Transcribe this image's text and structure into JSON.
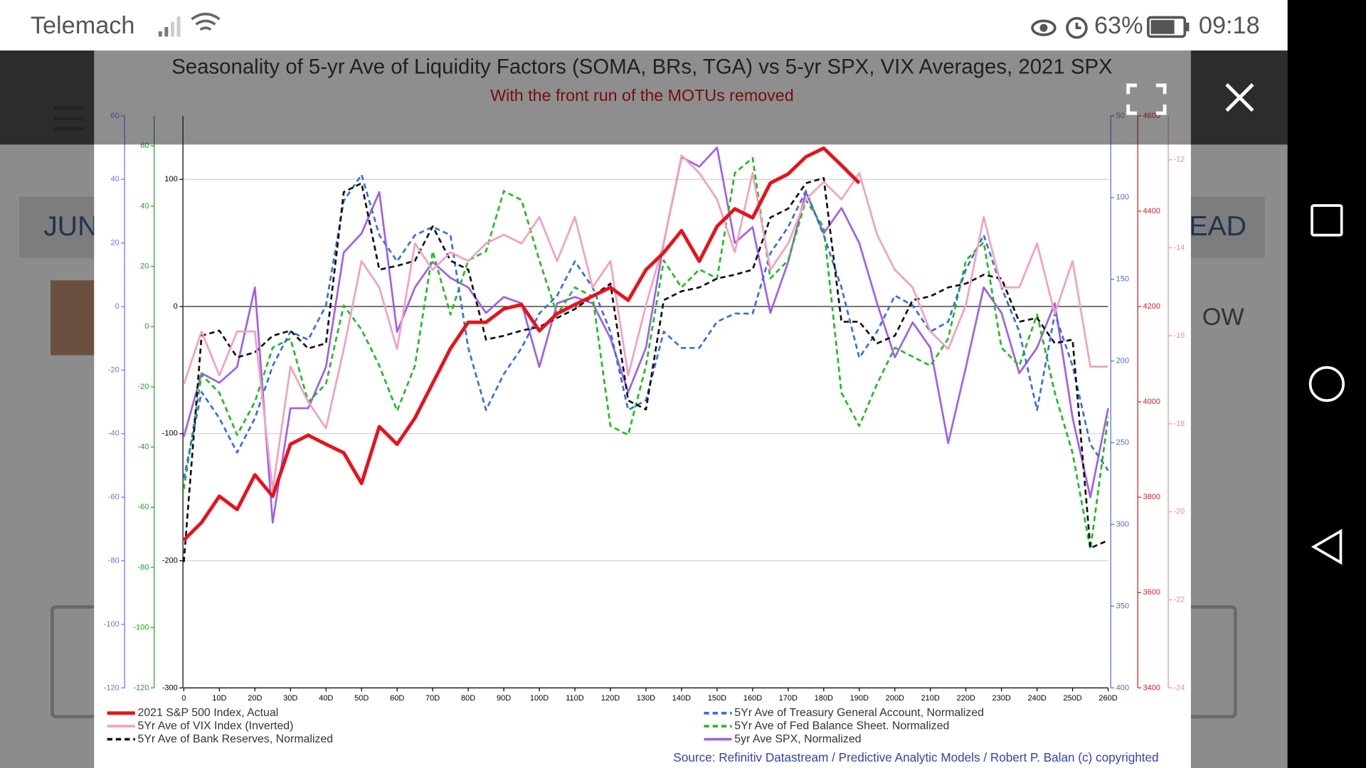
{
  "status": {
    "carrier": "Telemach",
    "battery": "63%",
    "time": "09:18"
  },
  "background": {
    "texts": [
      "JUN",
      "EAD",
      "OW"
    ]
  },
  "chart_data": {
    "type": "line",
    "title": "Seasonality of 5-yr Ave of Liquidity Factors (SOMA, BRs, TGA) vs 5-yr SPX, VIX Averages, 2021 SPX",
    "subtitle": "With the front run of the MOTUs removed",
    "source": "Source: Refinitiv Datastream / Predictive Analytic Models / Robert P. Balan (c) copyrighted",
    "x": [
      0,
      5,
      10,
      15,
      20,
      25,
      30,
      35,
      40,
      45,
      50,
      55,
      60,
      65,
      70,
      75,
      80,
      85,
      90,
      95,
      100,
      105,
      110,
      115,
      120,
      125,
      130,
      135,
      140,
      145,
      150,
      155,
      160,
      165,
      170,
      175,
      180,
      185,
      190,
      195,
      200,
      205,
      210,
      215,
      220,
      225,
      230,
      235,
      240,
      245,
      250,
      255,
      260
    ],
    "xlim": [
      0,
      260
    ],
    "xticks": [
      0,
      {
        "value": 10,
        "label": "10D"
      },
      {
        "value": 20,
        "label": "20D"
      },
      {
        "value": 30,
        "label": "30D"
      },
      {
        "value": 40,
        "label": "40D"
      },
      {
        "value": 50,
        "label": "50D"
      },
      {
        "value": 60,
        "label": "60D"
      },
      {
        "value": 70,
        "label": "70D"
      },
      {
        "value": 80,
        "label": "80D"
      },
      {
        "value": 90,
        "label": "90D"
      },
      {
        "value": 100,
        "label": "100D"
      },
      {
        "value": 110,
        "label": "110D"
      },
      {
        "value": 120,
        "label": "120D"
      },
      {
        "value": 130,
        "label": "130D"
      },
      {
        "value": 140,
        "label": "140D"
      },
      {
        "value": 150,
        "label": "150D"
      },
      {
        "value": 160,
        "label": "160D"
      },
      {
        "value": 170,
        "label": "170D"
      },
      {
        "value": 180,
        "label": "180D"
      },
      {
        "value": 190,
        "label": "190D"
      },
      {
        "value": 200,
        "label": "200D"
      },
      {
        "value": 210,
        "label": "210D"
      },
      {
        "value": 220,
        "label": "220D"
      },
      {
        "value": 230,
        "label": "230D"
      },
      {
        "value": 240,
        "label": "240D"
      },
      {
        "value": 250,
        "label": "250D"
      },
      {
        "value": 260,
        "label": "260D"
      }
    ],
    "grid": true,
    "grid_axis": 2,
    "axes": [
      {
        "ylim": [
          -120,
          60
        ],
        "yticks": [
          60,
          40,
          20,
          0,
          -20,
          -40,
          -60,
          -80,
          -100,
          -120
        ],
        "color": "#7b68ee"
      },
      {
        "ylim": [
          -120,
          70
        ],
        "yticks": [
          60,
          40,
          20,
          0,
          -20,
          -40,
          -60,
          -80,
          -100,
          -120
        ],
        "color": "#22a022"
      },
      {
        "ylim": [
          -300,
          150
        ],
        "yticks": [
          100,
          0,
          -100,
          -200,
          -300
        ],
        "color": "#000000"
      },
      {
        "ylim": [
          400,
          50
        ],
        "yticks": [
          50,
          100,
          150,
          200,
          250,
          300,
          350,
          400
        ],
        "color": "#4a6fc8"
      },
      {
        "ylim": [
          3400,
          4600
        ],
        "yticks": [
          4600,
          4400,
          4200,
          4000,
          3800,
          3600,
          3400
        ],
        "color": "#cc2222"
      },
      {
        "ylim": [
          -24,
          -11
        ],
        "yticks": [
          -12,
          -14,
          -16,
          -18,
          -20,
          -22,
          -24
        ],
        "color": "#e8909a"
      }
    ],
    "series": [
      {
        "name": "2021 S&P 500 Index, Actual",
        "color": "#e8121a",
        "axis": 4,
        "dashed": false,
        "values": [
          3710,
          3747,
          3802,
          3774,
          3847,
          3802,
          3911,
          3930,
          3911,
          3893,
          3829,
          3948,
          3911,
          3966,
          4039,
          4112,
          4167,
          4167,
          4195,
          4204,
          4149,
          4185,
          4204,
          4222,
          4240,
          4213,
          4277,
          4313,
          4359,
          4295,
          4368,
          4405,
          4386,
          4459,
          4478,
          4514,
          4532,
          4496,
          4459,
          null,
          null,
          null,
          null,
          null,
          null,
          null,
          null,
          null,
          null,
          null,
          null,
          null,
          null
        ]
      },
      {
        "name": "5Yr Ave of VIX Index (Inverted)",
        "color": "#f4a0c0",
        "axis": 5,
        "dashed": false,
        "values": [
          -17.1,
          -15.9,
          -16.9,
          -15.9,
          -15.9,
          -19.5,
          -16.7,
          -17.5,
          -18.1,
          -16.3,
          -14.3,
          -14.9,
          -16.3,
          -13.9,
          -14.5,
          -14.1,
          -14.3,
          -13.9,
          -13.7,
          -13.9,
          -13.3,
          -14.3,
          -13.3,
          -14.9,
          -14.3,
          -16.9,
          -15.3,
          -13.9,
          -11.9,
          -12.3,
          -12.9,
          -14.1,
          -12.3,
          -14.5,
          -13.9,
          -12.9,
          -12.5,
          -12.9,
          -12.3,
          -13.7,
          -14.5,
          -14.9,
          -15.9,
          -16.3,
          -15.3,
          -13.3,
          -14.9,
          -14.9,
          -13.9,
          -15.5,
          -14.3,
          -16.7,
          -16.7
        ]
      },
      {
        "name": "5Yr Ave of Bank Reserves, Normalized",
        "color": "#111111",
        "axis": 2,
        "dashed": true,
        "values": [
          -201,
          -23,
          -19,
          -40,
          -36,
          -23,
          -19,
          -33,
          -29,
          90,
          97,
          29,
          32,
          36,
          63,
          36,
          29,
          -26,
          -23,
          -19,
          -16,
          -9,
          -2,
          8,
          18,
          -74,
          -81,
          5,
          12,
          15,
          22,
          25,
          29,
          70,
          77,
          97,
          101,
          -12,
          -12,
          -29,
          -23,
          5,
          8,
          15,
          18,
          25,
          22,
          -12,
          -9,
          -29,
          -26,
          -190,
          -184
        ]
      },
      {
        "name": "5Yr Ave of Treasury General Account, Normalized",
        "color": "#3a6fd8",
        "axis": 3,
        "dashed": true,
        "values": [
          272,
          219,
          235,
          256,
          235,
          203,
          182,
          187,
          166,
          102,
          86,
          123,
          139,
          123,
          118,
          123,
          192,
          230,
          208,
          192,
          171,
          160,
          139,
          155,
          182,
          230,
          224,
          182,
          192,
          192,
          176,
          171,
          171,
          134,
          118,
          96,
          123,
          155,
          198,
          182,
          160,
          166,
          182,
          176,
          144,
          123,
          155,
          182,
          230,
          171,
          203,
          251,
          267
        ]
      },
      {
        "name": "5Yr Ave of Fed Balance Sheet. Normalized",
        "color": "#22bb22",
        "axis": 1,
        "dashed": true,
        "values": [
          -54,
          -16,
          -22,
          -36,
          -25,
          -7,
          -4,
          -25,
          -19,
          7,
          -1,
          -13,
          -28,
          -13,
          25,
          4,
          22,
          25,
          45,
          42,
          22,
          4,
          13,
          10,
          -33,
          -36,
          -13,
          22,
          13,
          19,
          16,
          51,
          56,
          16,
          22,
          42,
          33,
          -22,
          -33,
          -19,
          -7,
          -10,
          -13,
          -4,
          22,
          28,
          -7,
          -13,
          4,
          -22,
          -42,
          -74,
          -30
        ]
      },
      {
        "name": "5yr Ave SPX, Normalized",
        "color": "#a060e8",
        "axis": 0,
        "dashed": false,
        "values": [
          -41,
          -21,
          -24,
          -19,
          6,
          -68,
          -32,
          -32,
          -19,
          17,
          23,
          36,
          -8,
          6,
          14,
          9,
          6,
          -2,
          3,
          1,
          -19,
          1,
          3,
          1,
          -10,
          -27,
          -13,
          20,
          47,
          44,
          50,
          20,
          25,
          -2,
          14,
          36,
          23,
          31,
          20,
          1,
          -16,
          -5,
          -13,
          -43,
          -19,
          6,
          -2,
          -21,
          -13,
          1,
          -35,
          -60,
          -32
        ]
      }
    ]
  }
}
